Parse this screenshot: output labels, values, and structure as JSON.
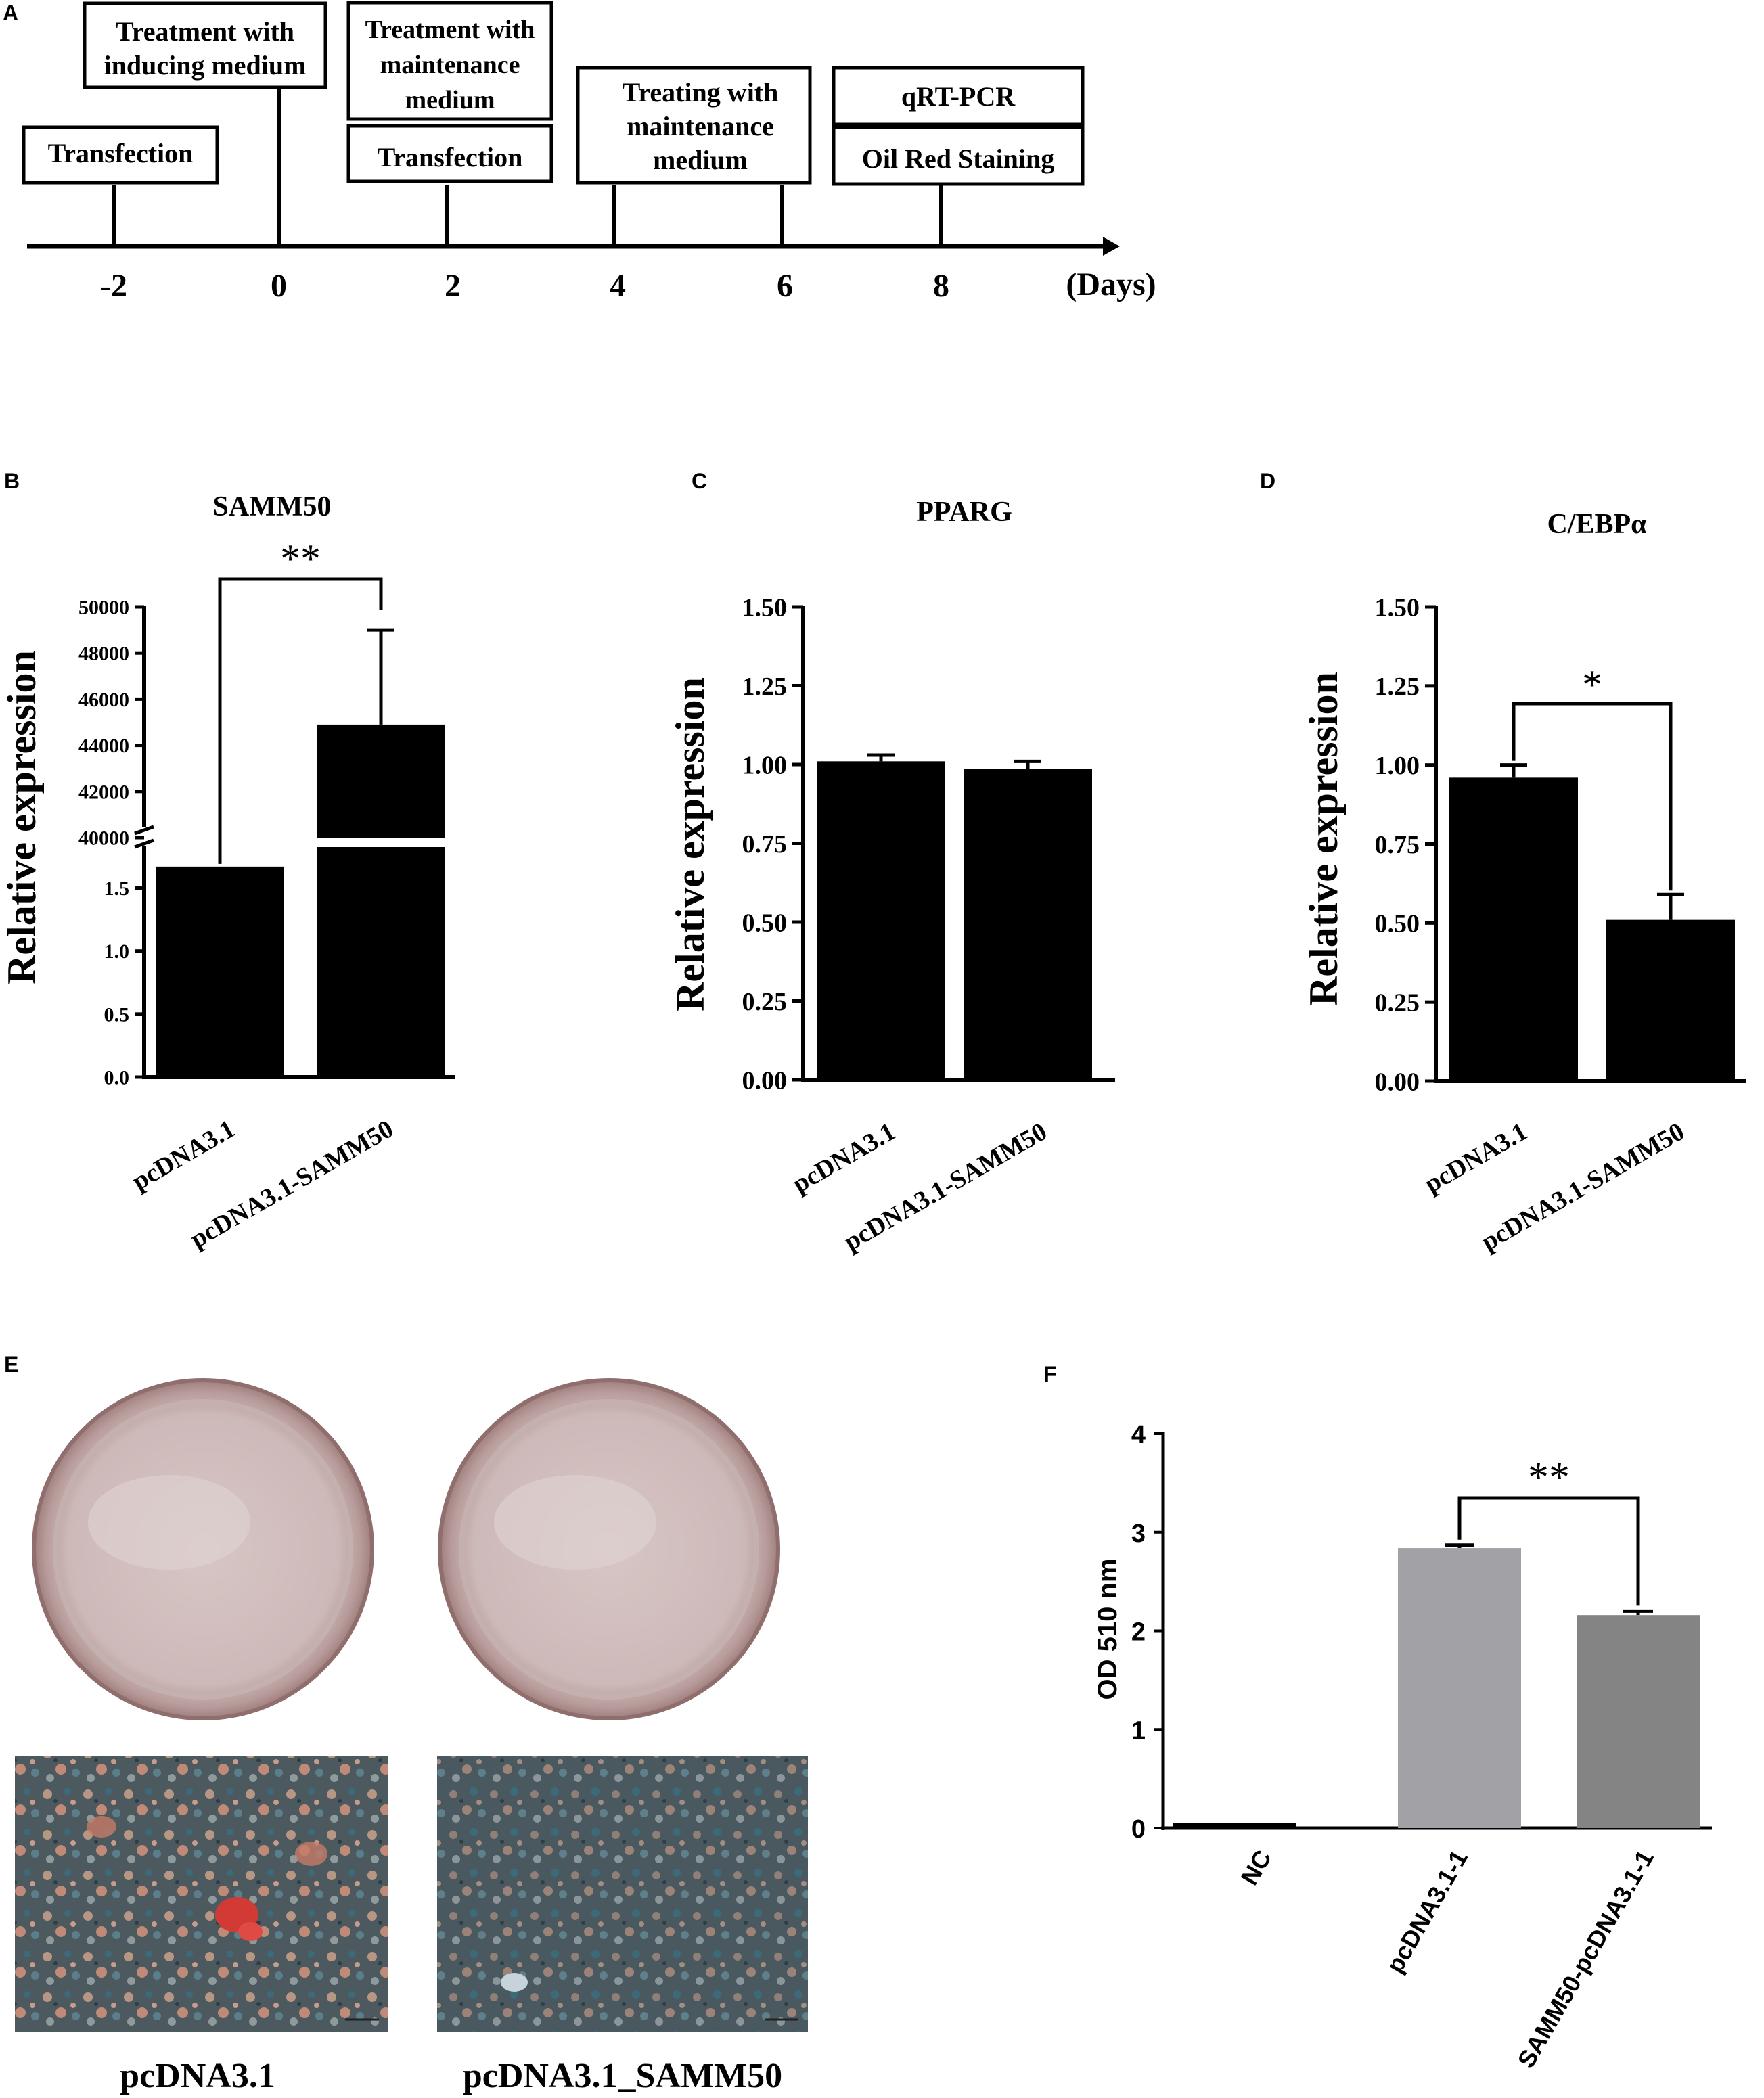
{
  "panel_labels": {
    "a": "A",
    "b": "B",
    "c": "C",
    "d": "D",
    "e": "E",
    "f": "F"
  },
  "timeline": {
    "days": [
      "-2",
      "0",
      "2",
      "4",
      "6",
      "8"
    ],
    "unit": "(Days)",
    "boxes": {
      "transfection_1": "Transfection",
      "inducing_1": "Treatment with",
      "inducing_2": "inducing medium",
      "maint_a_1": "Treatment with",
      "maint_a_2": "maintenance",
      "maint_a_3": "medium",
      "transfection_2": "Transfection",
      "treating_1": "Treating with",
      "treating_2": "maintenance",
      "treating_3": "medium",
      "qrtpcr": "qRT-PCR",
      "oilred": "Oil Red Staining"
    }
  },
  "chart_data": [
    {
      "panel": "B",
      "type": "bar",
      "title": "SAMM50",
      "ylabel": "Relative expression",
      "categories": [
        "pcDNA3.1",
        "pcDNA3.1-SAMM50"
      ],
      "values": [
        1.67,
        44900
      ],
      "error": [
        0.02,
        4100
      ],
      "axis_break": true,
      "lower_range": [
        0,
        1.9
      ],
      "upper_range": [
        40000,
        50000
      ],
      "lower_ticks": [
        "0.0",
        "0.5",
        "1.0",
        "1.5"
      ],
      "upper_ticks": [
        "40000",
        "42000",
        "44000",
        "46000",
        "48000",
        "50000"
      ],
      "significance": "**"
    },
    {
      "panel": "C",
      "type": "bar",
      "title": "PPARG",
      "ylabel": "Relative expression",
      "categories": [
        "pcDNA3.1",
        "pcDNA3.1-SAMM50"
      ],
      "values": [
        1.01,
        0.985
      ],
      "error": [
        0.02,
        0.025
      ],
      "ylim": [
        0,
        1.5
      ],
      "ticks": [
        "0.00",
        "0.25",
        "0.50",
        "0.75",
        "1.00",
        "1.25",
        "1.50"
      ]
    },
    {
      "panel": "D",
      "type": "bar",
      "title": "C/EBPα",
      "ylabel": "Relative expression",
      "categories": [
        "pcDNA3.1",
        "pcDNA3.1-SAMM50"
      ],
      "values": [
        0.96,
        0.51
      ],
      "error": [
        0.04,
        0.08
      ],
      "ylim": [
        0,
        1.5
      ],
      "ticks": [
        "0.00",
        "0.25",
        "0.50",
        "0.75",
        "1.00",
        "1.25",
        "1.50"
      ],
      "significance": "*"
    },
    {
      "panel": "F",
      "type": "bar",
      "ylabel": "OD 510 nm",
      "categories": [
        "NC",
        "pcDNA3.1-1",
        "SAMM50-pcDNA3.1-1"
      ],
      "values": [
        0.05,
        2.84,
        2.16
      ],
      "error": [
        0,
        0.03,
        0.04
      ],
      "colors": [
        "#000000",
        "#a2a2a6",
        "#848484"
      ],
      "ylim": [
        0,
        4
      ],
      "ticks": [
        "0",
        "1",
        "2",
        "3",
        "4"
      ],
      "significance": "**"
    }
  ],
  "panel_e": {
    "labels": [
      "pcDNA3.1",
      "pcDNA3.1_SAMM50"
    ]
  }
}
